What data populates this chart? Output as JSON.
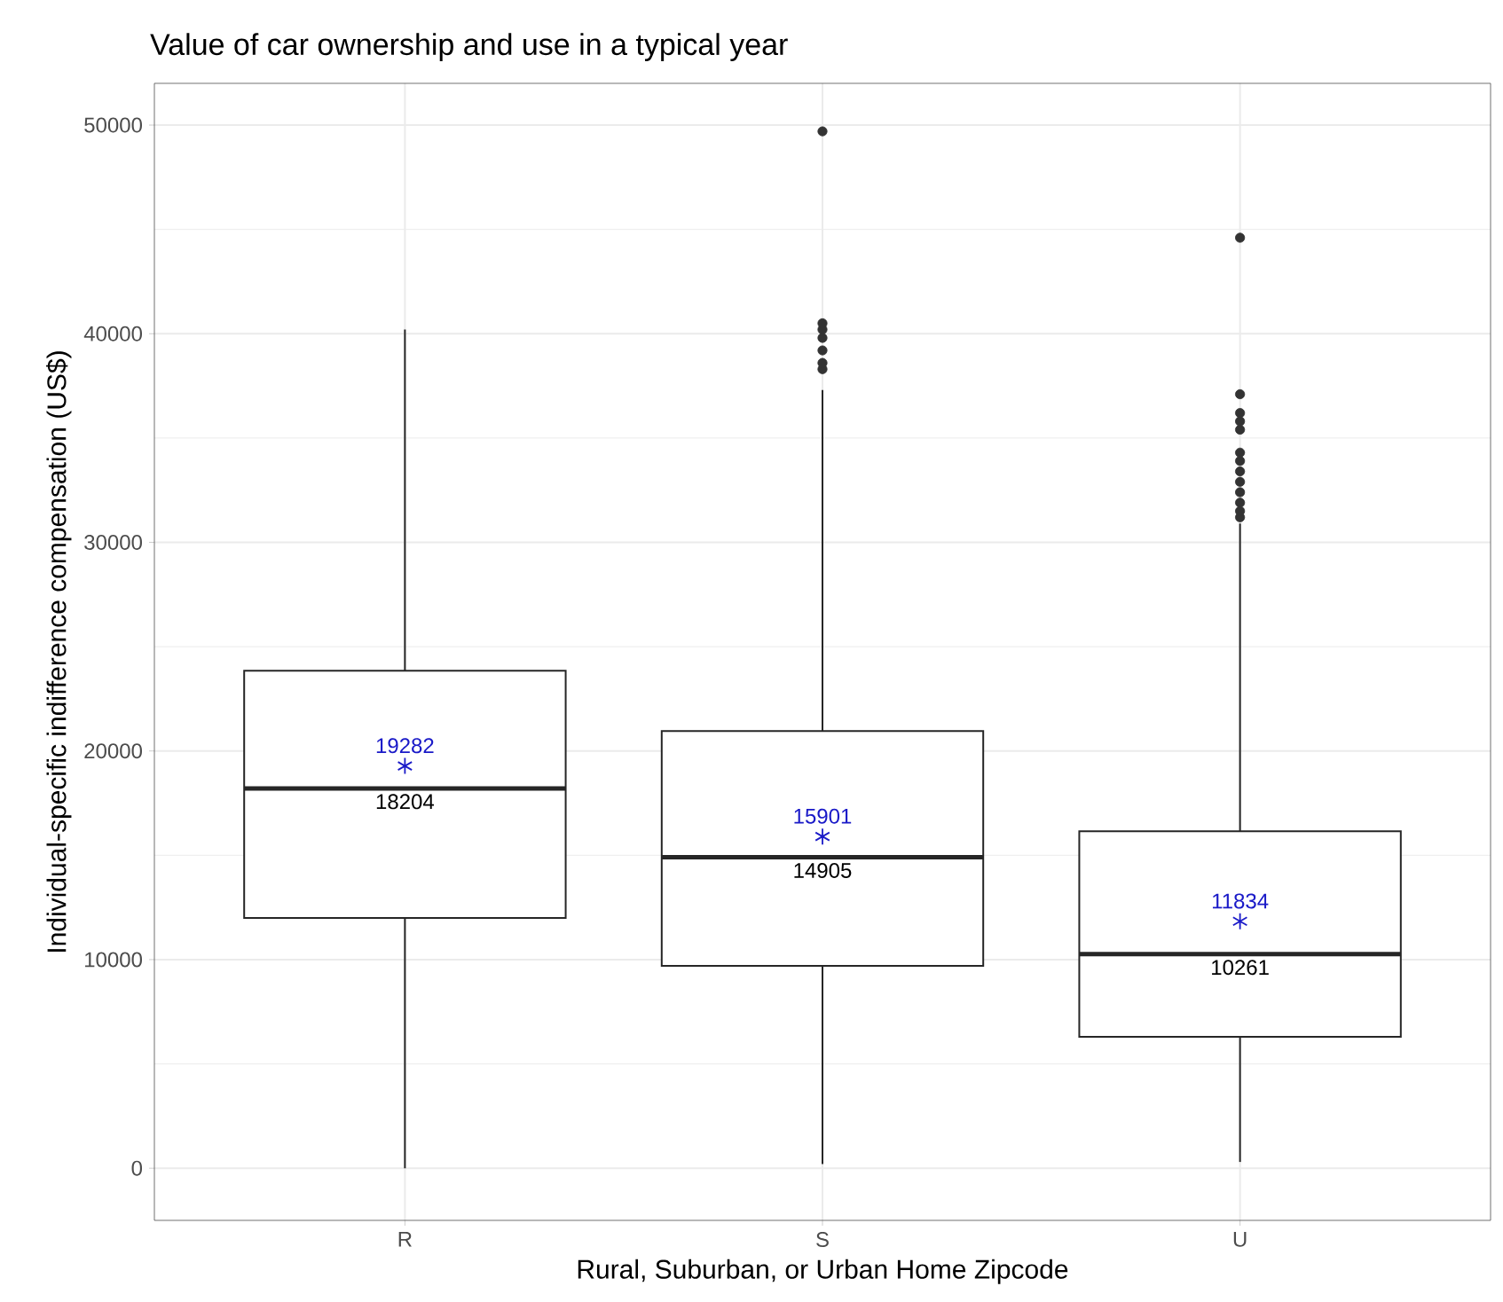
{
  "chart_data": {
    "type": "box",
    "title": "Value of car ownership and use in a typical year",
    "xlabel": "Rural, Suburban, or Urban Home Zipcode",
    "ylabel": "Individual-specific indifference compensation (US$)",
    "categories": [
      "R",
      "S",
      "U"
    ],
    "boxes": [
      {
        "low": 0,
        "q1": 12000,
        "median": 18204,
        "q3": 23850,
        "high": 40200
      },
      {
        "low": 200,
        "q1": 9700,
        "median": 14905,
        "q3": 20950,
        "high": 37300,
        "outliers": [
          38300,
          38600,
          39200,
          39800,
          40200,
          40500,
          49700
        ]
      },
      {
        "low": 300,
        "q1": 6300,
        "median": 10261,
        "q3": 16150,
        "high": 30900,
        "outliers": [
          31200,
          31500,
          31900,
          32400,
          32900,
          33400,
          33900,
          34300,
          35400,
          35800,
          36200,
          37100,
          44600
        ]
      }
    ],
    "series": [
      {
        "type": "scatter",
        "x": [
          "R",
          "S",
          "U"
        ],
        "values": [
          19282,
          15901,
          11834
        ],
        "color": "#1a1ac8",
        "marker": "cross"
      }
    ],
    "annotations": [
      {
        "text": "19282",
        "x": "R",
        "y": 19282
      },
      {
        "text": "18204",
        "x": "R",
        "y": 18204
      },
      {
        "text": "15901",
        "x": "S",
        "y": 15901
      },
      {
        "text": "14905",
        "x": "S",
        "y": 14905
      },
      {
        "text": "11834",
        "x": "U",
        "y": 11834
      },
      {
        "text": "10261",
        "x": "U",
        "y": 10261
      }
    ],
    "ylim": [
      -2500,
      52000
    ],
    "yticks": [
      0,
      10000,
      20000,
      30000,
      40000,
      50000
    ],
    "grid": true
  }
}
